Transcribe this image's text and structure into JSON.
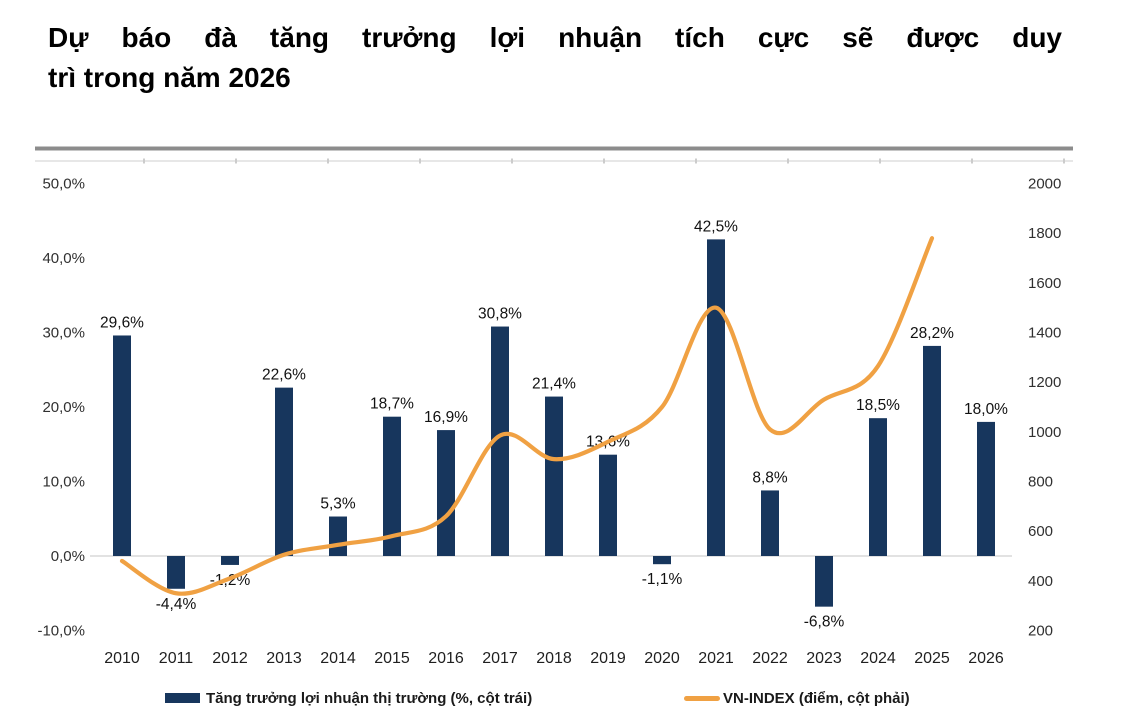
{
  "title": {
    "line1": "Dự báo đà tăng trưởng lợi nhuận tích cực sẽ được duy",
    "line2": "trì trong năm 2026"
  },
  "legend": {
    "bar_label": "Tăng trưởng lợi nhuận thị trường (%, cột trái)",
    "line_label": "VN-INDEX (điểm, cột phải)"
  },
  "colors": {
    "bar": "#17365D",
    "line": "#F0A143",
    "zero_line": "#D9D9D9",
    "rule_dark": "#8C8C8C",
    "rule_light": "#E7E7E7",
    "tick_mark": "#CCCCCC",
    "axis_text": "#303030",
    "value_text": "#111111"
  },
  "chart_data": {
    "type": "combo",
    "categories": [
      "2010",
      "2011",
      "2012",
      "2013",
      "2014",
      "2015",
      "2016",
      "2017",
      "2018",
      "2019",
      "2020",
      "2021",
      "2022",
      "2023",
      "2024",
      "2025",
      "2026"
    ],
    "series": [
      {
        "name": "Tăng trưởng lợi nhuận thị trường (%, cột trái)",
        "type": "bar",
        "axis": "left",
        "values": [
          29.6,
          -4.4,
          -1.2,
          22.6,
          5.3,
          18.7,
          16.9,
          30.8,
          21.4,
          13.6,
          -1.1,
          42.5,
          8.8,
          -6.8,
          18.5,
          28.2,
          18.0
        ],
        "value_labels": [
          "29,6%",
          "-4,4%",
          "-1,2%",
          "22,6%",
          "5,3%",
          "18,7%",
          "16,9%",
          "30,8%",
          "21,4%",
          "13,6%",
          "-1,1%",
          "42,5%",
          "8,8%",
          "-6,8%",
          "18,5%",
          "28,2%",
          "18,0%"
        ]
      },
      {
        "name": "VN-INDEX (điểm, cột phải)",
        "type": "line",
        "axis": "right",
        "values": [
          480,
          350,
          410,
          505,
          545,
          580,
          660,
          985,
          890,
          960,
          1100,
          1500,
          1010,
          1130,
          1265,
          1780,
          null
        ]
      }
    ],
    "left_axis": {
      "labels": [
        "50,0%",
        "40,0%",
        "30,0%",
        "20,0%",
        "10,0%",
        "0,0%",
        "-10,0%"
      ],
      "values": [
        50,
        40,
        30,
        20,
        10,
        0,
        -10
      ],
      "min": -10,
      "max": 50
    },
    "right_axis": {
      "labels": [
        "2000",
        "1800",
        "1600",
        "1400",
        "1200",
        "1000",
        "800",
        "600",
        "400",
        "200"
      ],
      "values": [
        2000,
        1800,
        1600,
        1400,
        1200,
        1000,
        800,
        600,
        400,
        200
      ],
      "min": 200,
      "max": 2000
    },
    "grid": "none",
    "legend_position": "bottom"
  }
}
